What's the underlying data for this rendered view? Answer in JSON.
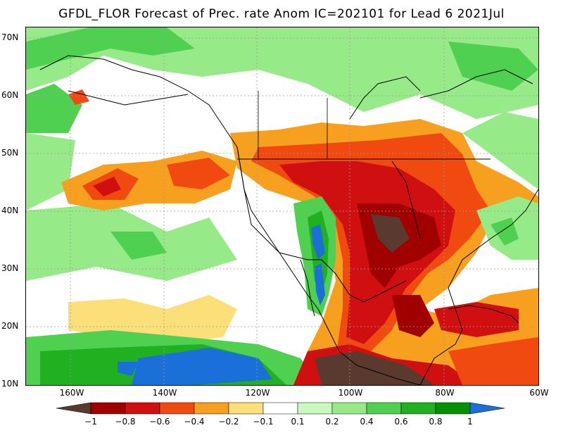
{
  "title": "GFDL_FLOR Forecast of Prec. rate Anom IC=202101 for Lead 6 2021Jul",
  "map": {
    "lat_labels": [
      "70N",
      "60N",
      "50N",
      "40N",
      "30N",
      "20N",
      "10N"
    ],
    "lon_labels": [
      "160W",
      "140W",
      "120W",
      "100W",
      "80W",
      "60W"
    ],
    "lon_range": [
      -170,
      -60
    ],
    "lat_range": [
      10,
      72
    ]
  },
  "colorbar": {
    "labels": [
      "−1",
      "−0.8",
      "−0.6",
      "−0.4",
      "−0.2",
      "−0.1",
      "0.1",
      "0.2",
      "0.4",
      "0.6",
      "0.8",
      "1"
    ],
    "colors": [
      "#5a3a2e",
      "#a00000",
      "#d01010",
      "#f04a10",
      "#f7a020",
      "#fbe07a",
      "#ffffff",
      "#c8fac0",
      "#96ea88",
      "#50d050",
      "#20b020",
      "#069006",
      "#1a6fd8"
    ]
  }
}
